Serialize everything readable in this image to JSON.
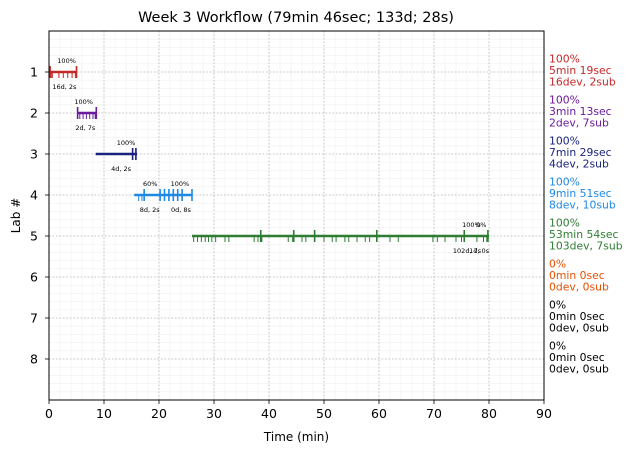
{
  "chart_data": {
    "type": "timeline",
    "title": "Week 3 Workflow (79min 46sec; 133d; 28s)",
    "xlabel": "Time (min)",
    "ylabel": "Lab #",
    "xlim": [
      0,
      90
    ],
    "ylim": [
      0,
      9
    ],
    "y_inverted": true,
    "xticks": [
      0,
      10,
      20,
      30,
      40,
      50,
      60,
      70,
      80,
      90
    ],
    "yticks": [
      1,
      2,
      3,
      4,
      5,
      6,
      7,
      8
    ],
    "grid": true,
    "labs": [
      {
        "lab": 1,
        "color": "#c62828",
        "bar": [
          0,
          5.0
        ],
        "dev_ticks": [
          0.2,
          0.4,
          0.6,
          1.8,
          2.6,
          3.4,
          4.2,
          4.8
        ],
        "sub_ticks": [
          0.2,
          5.0
        ],
        "progress": [
          {
            "x": 3.2,
            "label": "100%"
          }
        ],
        "counts": [
          {
            "x": 2.8,
            "label": "16d, 2s"
          }
        ],
        "side": [
          "100%",
          "5min 19sec",
          "16dev, 2sub"
        ]
      },
      {
        "lab": 2,
        "color": "#6a1b9a",
        "bar": [
          5.2,
          8.6
        ],
        "dev_ticks": [
          5.6,
          6.2,
          6.8,
          7.4,
          8.0,
          8.4
        ],
        "sub_ticks": [
          5.2,
          8.6
        ],
        "progress": [
          {
            "x": 6.3,
            "label": "100%"
          }
        ],
        "counts": [
          {
            "x": 6.6,
            "label": "2d, 7s"
          }
        ],
        "side": [
          "100%",
          "3min 13sec",
          "2dev, 7sub"
        ]
      },
      {
        "lab": 3,
        "color": "#1a237e",
        "bar": [
          8.5,
          16.0
        ],
        "dev_ticks": [
          15.2,
          15.8
        ],
        "sub_ticks": [
          15.2,
          15.8
        ],
        "progress": [
          {
            "x": 14.0,
            "label": "100%"
          }
        ],
        "counts": [
          {
            "x": 13.1,
            "label": "4d, 2s"
          }
        ],
        "side": [
          "100%",
          "7min 29sec",
          "4dev, 2sub"
        ]
      },
      {
        "lab": 4,
        "color": "#1e88e5",
        "bar": [
          15.5,
          26.0
        ],
        "dev_ticks": [
          16.3,
          16.9,
          17.3
        ],
        "sub_ticks": [
          17.3,
          20.2,
          21.0,
          21.8,
          22.6,
          23.4,
          24.2,
          26.0
        ],
        "progress": [
          {
            "x": 18.4,
            "label": "60%"
          },
          {
            "x": 23.8,
            "label": "100%"
          }
        ],
        "counts": [
          {
            "x": 18.3,
            "label": "8d, 2s"
          },
          {
            "x": 24.0,
            "label": "0d, 8s"
          }
        ],
        "side": [
          "100%",
          "9min 51sec",
          "8dev, 10sub"
        ]
      },
      {
        "lab": 5,
        "color": "#2e7d32",
        "bar": [
          26.0,
          80.0
        ],
        "dev_ticks": [
          26.3,
          27.0,
          27.7,
          28.4,
          29.0,
          29.6,
          30.3,
          32.0,
          32.7,
          37.3,
          38.0,
          38.7,
          43.5,
          44.3,
          46.0,
          46.7,
          48.3,
          50.0,
          51.5,
          52.2,
          53.8,
          54.5,
          56.0,
          57.5,
          58.3,
          59.6,
          62.0,
          63.5,
          69.8,
          70.6,
          72.0,
          74.0,
          75.0,
          77.8,
          79.0,
          79.6
        ],
        "sub_ticks": [
          38.5,
          44.5,
          48.3,
          59.6,
          75.5,
          79.8
        ],
        "progress": [
          {
            "x": 76.8,
            "label": "100%"
          },
          {
            "x": 78.6,
            "label": "0%"
          }
        ],
        "counts": [
          {
            "x": 76.0,
            "label": "102d, 7s"
          },
          {
            "x": 78.2,
            "label": "1d, 0s"
          }
        ],
        "side": [
          "100%",
          "53min 54sec",
          "103dev, 7sub"
        ]
      },
      {
        "lab": 6,
        "color": "#e65100",
        "bar": null,
        "dev_ticks": [],
        "sub_ticks": [],
        "progress": [],
        "counts": [],
        "side": [
          "0%",
          "0min 0sec",
          "0dev, 0sub"
        ]
      },
      {
        "lab": 7,
        "color": "#000000",
        "bar": null,
        "dev_ticks": [],
        "sub_ticks": [],
        "progress": [],
        "counts": [],
        "side": [
          "0%",
          "0min 0sec",
          "0dev, 0sub"
        ]
      },
      {
        "lab": 8,
        "color": "#000000",
        "bar": null,
        "dev_ticks": [],
        "sub_ticks": [],
        "progress": [],
        "counts": [],
        "side": [
          "0%",
          "0min 0sec",
          "0dev, 0sub"
        ]
      }
    ]
  }
}
